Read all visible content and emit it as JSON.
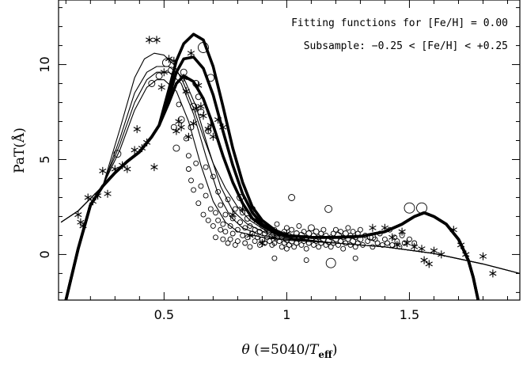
{
  "chart_data": {
    "type": "scatter",
    "xlabel": "θ (=5040/T_eff)",
    "xlabel_main": "θ",
    "xlabel_paren": " (=5040/",
    "xlabel_T": "T",
    "xlabel_sub": "eff",
    "xlabel_close": ")",
    "ylabel": "PaT(Å)",
    "xlim": [
      0.07,
      1.95
    ],
    "ylim": [
      -2.4,
      13.4
    ],
    "xticks": [
      0.5,
      1,
      1.5
    ],
    "xtick_labels": [
      "0.5",
      "1",
      "1.5"
    ],
    "yticks": [
      0,
      5,
      10
    ],
    "ytick_labels": [
      "0",
      "5",
      "10"
    ],
    "grid": false,
    "annotations": [
      "Fitting functions for [Fe/H] = 0.00",
      "Subsample: −0.25 < [Fe/H] < +0.25"
    ],
    "series": [
      {
        "line": "thin",
        "x": [
          0.08,
          0.15,
          0.25,
          0.32,
          0.38,
          0.43,
          0.47,
          0.5,
          0.55,
          0.6,
          0.65,
          0.7,
          0.75,
          0.8,
          0.9,
          1.0,
          1.2,
          1.4,
          1.6,
          1.8,
          1.95
        ],
        "y": [
          1.7,
          2.3,
          3.6,
          5.5,
          7.6,
          8.8,
          9.2,
          9.2,
          8.6,
          7.0,
          4.7,
          2.8,
          1.7,
          1.2,
          0.9,
          0.75,
          0.6,
          0.4,
          0.05,
          -0.5,
          -1.0
        ]
      },
      {
        "line": "thin",
        "x": [
          0.08,
          0.15,
          0.25,
          0.32,
          0.38,
          0.43,
          0.47,
          0.52,
          0.57,
          0.62,
          0.67,
          0.72,
          0.77,
          0.82,
          0.9,
          1.0,
          1.2,
          1.4,
          1.6,
          1.8,
          1.95
        ],
        "y": [
          1.7,
          2.3,
          3.6,
          5.8,
          8.0,
          9.2,
          9.6,
          9.6,
          9.0,
          7.4,
          5.2,
          3.2,
          2.0,
          1.4,
          1.0,
          0.8,
          0.6,
          0.4,
          0.05,
          -0.5,
          -1.0
        ]
      },
      {
        "line": "thin",
        "x": [
          0.08,
          0.15,
          0.25,
          0.32,
          0.38,
          0.43,
          0.47,
          0.52,
          0.58,
          0.63,
          0.68,
          0.73,
          0.78,
          0.84,
          0.92,
          1.0,
          1.2,
          1.4,
          1.6,
          1.8,
          1.95
        ],
        "y": [
          1.7,
          2.3,
          3.6,
          6.1,
          8.5,
          9.6,
          9.9,
          9.9,
          9.3,
          7.8,
          5.6,
          3.6,
          2.3,
          1.6,
          1.1,
          0.85,
          0.6,
          0.4,
          0.05,
          -0.5,
          -1.0
        ]
      },
      {
        "line": "thin",
        "x": [
          0.08,
          0.15,
          0.25,
          0.32,
          0.38,
          0.42,
          0.46,
          0.5,
          0.54,
          0.58,
          0.62,
          0.66,
          0.7,
          0.75,
          0.8,
          0.85,
          0.92,
          1.0,
          1.2,
          1.4,
          1.6,
          1.8,
          1.95
        ],
        "y": [
          1.7,
          2.3,
          3.6,
          6.6,
          9.3,
          10.3,
          10.6,
          10.5,
          10.0,
          9.0,
          7.7,
          6.2,
          4.8,
          3.5,
          2.5,
          1.8,
          1.2,
          0.9,
          0.6,
          0.4,
          0.05,
          -0.5,
          -1.0
        ]
      },
      {
        "line": "thick",
        "x": [
          0.1,
          0.15,
          0.2,
          0.25,
          0.3,
          0.35,
          0.4,
          0.45,
          0.48,
          0.52,
          0.55,
          0.58,
          0.62,
          0.66,
          0.7,
          0.74,
          0.78,
          0.82,
          0.86,
          0.9,
          0.95,
          1.0,
          1.1,
          1.2,
          1.3,
          1.4,
          1.47,
          1.52,
          1.56,
          1.6,
          1.65,
          1.7,
          1.74,
          1.76,
          1.78
        ],
        "y": [
          -2.4,
          0.3,
          2.6,
          3.6,
          4.3,
          4.9,
          5.4,
          6.2,
          6.8,
          8.0,
          9.0,
          9.4,
          9.1,
          8.2,
          6.8,
          5.2,
          3.8,
          2.7,
          1.9,
          1.5,
          1.15,
          1.0,
          0.9,
          0.9,
          0.95,
          1.2,
          1.6,
          2.0,
          2.2,
          2.0,
          1.6,
          0.8,
          -0.3,
          -1.2,
          -2.4
        ]
      },
      {
        "line": "thick",
        "x": [
          0.1,
          0.15,
          0.2,
          0.25,
          0.3,
          0.35,
          0.4,
          0.45,
          0.48,
          0.52,
          0.55,
          0.58,
          0.62,
          0.66,
          0.7,
          0.74,
          0.78,
          0.82,
          0.86,
          0.9,
          0.95,
          1.0,
          1.1,
          1.2,
          1.3,
          1.4,
          1.47,
          1.52,
          1.56,
          1.6,
          1.65,
          1.7,
          1.74,
          1.76,
          1.78
        ],
        "y": [
          -2.4,
          0.3,
          2.6,
          3.6,
          4.3,
          4.9,
          5.4,
          6.2,
          6.8,
          8.3,
          9.6,
          10.3,
          10.4,
          9.8,
          8.4,
          6.5,
          4.7,
          3.2,
          2.2,
          1.6,
          1.2,
          1.0,
          0.9,
          0.9,
          0.95,
          1.2,
          1.6,
          2.0,
          2.2,
          2.0,
          1.6,
          0.8,
          -0.3,
          -1.2,
          -2.4
        ]
      },
      {
        "line": "thick",
        "x": [
          0.1,
          0.15,
          0.2,
          0.25,
          0.3,
          0.35,
          0.4,
          0.45,
          0.48,
          0.52,
          0.55,
          0.58,
          0.62,
          0.66,
          0.7,
          0.74,
          0.78,
          0.82,
          0.86,
          0.9,
          0.95,
          1.0,
          1.1,
          1.2,
          1.3,
          1.4,
          1.47,
          1.52,
          1.56,
          1.6,
          1.65,
          1.7,
          1.74,
          1.76,
          1.78
        ],
        "y": [
          -2.4,
          0.3,
          2.6,
          3.6,
          4.3,
          4.9,
          5.4,
          6.2,
          6.8,
          8.7,
          10.2,
          11.1,
          11.6,
          11.3,
          9.9,
          7.8,
          5.6,
          3.8,
          2.5,
          1.8,
          1.3,
          1.0,
          0.9,
          0.9,
          0.95,
          1.2,
          1.6,
          2.0,
          2.2,
          2.0,
          1.6,
          0.8,
          -0.3,
          -1.2,
          -2.4
        ]
      }
    ],
    "stars": [
      [
        0.15,
        2.1
      ],
      [
        0.16,
        1.7
      ],
      [
        0.17,
        1.5
      ],
      [
        0.19,
        3.0
      ],
      [
        0.21,
        2.8
      ],
      [
        0.23,
        3.1
      ],
      [
        0.25,
        4.4
      ],
      [
        0.27,
        3.2
      ],
      [
        0.3,
        4.5
      ],
      [
        0.33,
        4.7
      ],
      [
        0.35,
        4.5
      ],
      [
        0.38,
        5.5
      ],
      [
        0.39,
        6.6
      ],
      [
        0.41,
        5.6
      ],
      [
        0.43,
        5.9
      ],
      [
        0.44,
        11.3
      ],
      [
        0.46,
        4.6
      ],
      [
        0.47,
        11.3
      ],
      [
        0.49,
        8.8
      ],
      [
        0.5,
        9.6
      ],
      [
        0.52,
        10.3
      ],
      [
        0.54,
        10.2
      ],
      [
        0.55,
        6.5
      ],
      [
        0.56,
        7.0
      ],
      [
        0.57,
        6.7
      ],
      [
        0.58,
        9.3
      ],
      [
        0.59,
        8.6
      ],
      [
        0.6,
        6.2
      ],
      [
        0.61,
        10.6
      ],
      [
        0.62,
        6.9
      ],
      [
        0.63,
        7.7
      ],
      [
        0.64,
        8.9
      ],
      [
        0.65,
        7.8
      ],
      [
        0.66,
        7.3
      ],
      [
        0.68,
        6.6
      ],
      [
        0.69,
        6.8
      ],
      [
        0.7,
        6.2
      ],
      [
        0.72,
        7.1
      ],
      [
        0.74,
        6.7
      ],
      [
        0.78,
        2.1
      ],
      [
        0.82,
        2.4
      ],
      [
        0.85,
        1.0
      ],
      [
        0.88,
        1.8
      ],
      [
        0.9,
        0.6
      ],
      [
        0.95,
        0.9
      ],
      [
        1.0,
        1.1
      ],
      [
        1.35,
        1.4
      ],
      [
        1.4,
        1.4
      ],
      [
        1.43,
        0.9
      ],
      [
        1.45,
        0.5
      ],
      [
        1.47,
        1.2
      ],
      [
        1.49,
        0.6
      ],
      [
        1.52,
        0.4
      ],
      [
        1.55,
        0.3
      ],
      [
        1.6,
        0.2
      ],
      [
        1.63,
        0.0
      ],
      [
        1.68,
        1.3
      ],
      [
        1.71,
        0.5
      ],
      [
        1.73,
        0.0
      ],
      [
        1.8,
        -0.1
      ],
      [
        1.84,
        -1.0
      ],
      [
        1.56,
        -0.3
      ],
      [
        1.58,
        -0.5
      ]
    ],
    "circles": [
      [
        0.31,
        5.3,
        4.5
      ],
      [
        0.51,
        10.1,
        5
      ],
      [
        0.53,
        9.7,
        4
      ],
      [
        0.54,
        6.7,
        3.5
      ],
      [
        0.55,
        5.6,
        4
      ],
      [
        0.56,
        7.9,
        3
      ],
      [
        0.57,
        7.1,
        4
      ],
      [
        0.58,
        9.6,
        4
      ],
      [
        0.59,
        6.1,
        3
      ],
      [
        0.6,
        4.5,
        3
      ],
      [
        0.6,
        5.2,
        3
      ],
      [
        0.61,
        3.9,
        3
      ],
      [
        0.61,
        6.7,
        3.5
      ],
      [
        0.62,
        7.8,
        4
      ],
      [
        0.62,
        3.4,
        3
      ],
      [
        0.63,
        4.8,
        3
      ],
      [
        0.63,
        9.0,
        4
      ],
      [
        0.64,
        2.7,
        3
      ],
      [
        0.64,
        8.3,
        3.5
      ],
      [
        0.65,
        3.6,
        3
      ],
      [
        0.65,
        7.5,
        4
      ],
      [
        0.66,
        10.9,
        6.5
      ],
      [
        0.66,
        2.1,
        3
      ],
      [
        0.67,
        4.6,
        3
      ],
      [
        0.67,
        3.1,
        3
      ],
      [
        0.68,
        1.8,
        3
      ],
      [
        0.68,
        6.5,
        3.5
      ],
      [
        0.69,
        2.4,
        3
      ],
      [
        0.69,
        9.3,
        4.5
      ],
      [
        0.7,
        1.5,
        3
      ],
      [
        0.7,
        4.1,
        3
      ],
      [
        0.71,
        2.2,
        3
      ],
      [
        0.71,
        0.9,
        3
      ],
      [
        0.72,
        1.8,
        3
      ],
      [
        0.72,
        3.3,
        3
      ],
      [
        0.73,
        1.3,
        3
      ],
      [
        0.73,
        2.6,
        3
      ],
      [
        0.74,
        0.8,
        3
      ],
      [
        0.74,
        1.6,
        3
      ],
      [
        0.75,
        2.1,
        3
      ],
      [
        0.75,
        1.2,
        3
      ],
      [
        0.76,
        0.6,
        3
      ],
      [
        0.76,
        2.9,
        3
      ],
      [
        0.77,
        1.5,
        3
      ],
      [
        0.77,
        0.8,
        3
      ],
      [
        0.78,
        1.9,
        3
      ],
      [
        0.78,
        1.1,
        3
      ],
      [
        0.79,
        0.5,
        3
      ],
      [
        0.79,
        2.4,
        3
      ],
      [
        0.8,
        1.3,
        3
      ],
      [
        0.8,
        0.7,
        3
      ],
      [
        0.81,
        1.7,
        3
      ],
      [
        0.81,
        3.0,
        4
      ],
      [
        0.82,
        1.0,
        3
      ],
      [
        0.82,
        2.2,
        3
      ],
      [
        0.83,
        0.6,
        3
      ],
      [
        0.83,
        1.4,
        3
      ],
      [
        0.84,
        1.9,
        3.5
      ],
      [
        0.84,
        0.9,
        3
      ],
      [
        0.85,
        1.5,
        3
      ],
      [
        0.85,
        0.4,
        3
      ],
      [
        0.86,
        1.1,
        3
      ],
      [
        0.86,
        2.4,
        3.5
      ],
      [
        0.87,
        0.7,
        3
      ],
      [
        0.87,
        1.3,
        3
      ],
      [
        0.88,
        0.9,
        3
      ],
      [
        0.88,
        1.8,
        3
      ],
      [
        0.89,
        0.5,
        3
      ],
      [
        0.89,
        1.2,
        3
      ],
      [
        0.9,
        1.5,
        3
      ],
      [
        0.9,
        0.8,
        3
      ],
      [
        0.91,
        0.6,
        3
      ],
      [
        0.91,
        1.1,
        3
      ],
      [
        0.92,
        1.4,
        3.5
      ],
      [
        0.92,
        0.9,
        3
      ],
      [
        0.93,
        0.7,
        3
      ],
      [
        0.93,
        1.2,
        3
      ],
      [
        0.94,
        0.5,
        3
      ],
      [
        0.94,
        1.0,
        3
      ],
      [
        0.95,
        1.3,
        3
      ],
      [
        0.95,
        0.6,
        3
      ],
      [
        0.96,
        0.9,
        3.5
      ],
      [
        0.96,
        1.6,
        3
      ],
      [
        0.97,
        0.7,
        3
      ],
      [
        0.97,
        1.1,
        3
      ],
      [
        0.98,
        0.4,
        3
      ],
      [
        0.98,
        0.9,
        3
      ],
      [
        0.99,
        1.2,
        3
      ],
      [
        0.99,
        0.6,
        3
      ],
      [
        1.0,
        0.8,
        4
      ],
      [
        1.0,
        1.4,
        3
      ],
      [
        1.0,
        0.3,
        3
      ],
      [
        1.01,
        1.0,
        3
      ],
      [
        1.01,
        0.5,
        3
      ],
      [
        1.02,
        0.7,
        3.5
      ],
      [
        1.02,
        1.3,
        3
      ],
      [
        1.02,
        3.0,
        4
      ],
      [
        1.03,
        0.9,
        3
      ],
      [
        1.03,
        0.4,
        3
      ],
      [
        1.04,
        1.1,
        3.5
      ],
      [
        1.04,
        0.6,
        3
      ],
      [
        1.05,
        0.8,
        3
      ],
      [
        1.05,
        1.5,
        3
      ],
      [
        1.06,
        0.5,
        3
      ],
      [
        1.06,
        1.0,
        4
      ],
      [
        1.07,
        0.7,
        3
      ],
      [
        1.07,
        1.2,
        3
      ],
      [
        1.08,
        0.9,
        3
      ],
      [
        1.08,
        0.3,
        3
      ],
      [
        1.09,
        1.1,
        3.5
      ],
      [
        1.09,
        0.6,
        3
      ],
      [
        1.1,
        0.8,
        3
      ],
      [
        1.1,
        1.4,
        4
      ],
      [
        1.11,
        0.5,
        3
      ],
      [
        1.11,
        1.0,
        3
      ],
      [
        1.12,
        0.7,
        3
      ],
      [
        1.12,
        1.2,
        3.5
      ],
      [
        1.13,
        0.9,
        3
      ],
      [
        1.13,
        0.4,
        3
      ],
      [
        1.14,
        1.1,
        3
      ],
      [
        1.14,
        0.6,
        3
      ],
      [
        1.15,
        0.8,
        3.5
      ],
      [
        1.15,
        1.3,
        3
      ],
      [
        1.16,
        0.5,
        3
      ],
      [
        1.16,
        1.0,
        3
      ],
      [
        1.17,
        0.7,
        4
      ],
      [
        1.17,
        2.4,
        4.5
      ],
      [
        1.18,
        0.9,
        3
      ],
      [
        1.18,
        0.4,
        3
      ],
      [
        1.19,
        1.1,
        3
      ],
      [
        1.19,
        0.6,
        3
      ],
      [
        1.2,
        0.8,
        3.5
      ],
      [
        1.2,
        1.3,
        3
      ],
      [
        1.21,
        0.5,
        3
      ],
      [
        1.21,
        1.0,
        4
      ],
      [
        1.22,
        0.7,
        3
      ],
      [
        1.22,
        1.2,
        3
      ],
      [
        1.23,
        0.9,
        3
      ],
      [
        1.23,
        0.3,
        3
      ],
      [
        1.24,
        1.1,
        3.5
      ],
      [
        1.24,
        0.6,
        3
      ],
      [
        1.25,
        0.8,
        3
      ],
      [
        1.25,
        1.4,
        3
      ],
      [
        1.26,
        0.5,
        3
      ],
      [
        1.26,
        1.0,
        3
      ],
      [
        1.27,
        0.7,
        3.5
      ],
      [
        1.27,
        1.2,
        3
      ],
      [
        1.28,
        0.9,
        3
      ],
      [
        1.28,
        0.4,
        3
      ],
      [
        1.29,
        1.1,
        3
      ],
      [
        1.29,
        0.6,
        3
      ],
      [
        1.3,
        0.8,
        3.5
      ],
      [
        1.3,
        1.3,
        3
      ],
      [
        1.31,
        0.5,
        3
      ],
      [
        1.32,
        1.0,
        3
      ],
      [
        1.33,
        0.7,
        3
      ],
      [
        1.34,
        0.9,
        3.5
      ],
      [
        1.35,
        0.4,
        3
      ],
      [
        1.36,
        0.8,
        3
      ],
      [
        1.37,
        0.6,
        3
      ],
      [
        1.38,
        1.1,
        3
      ],
      [
        1.39,
        0.5,
        3
      ],
      [
        1.4,
        0.8,
        3
      ],
      [
        1.41,
        0.6,
        3
      ],
      [
        1.42,
        1.3,
        3
      ],
      [
        1.43,
        0.5,
        3
      ],
      [
        1.44,
        0.9,
        3
      ],
      [
        1.45,
        0.7,
        3
      ],
      [
        1.46,
        0.4,
        3
      ],
      [
        1.47,
        1.0,
        3
      ],
      [
        1.48,
        0.6,
        3
      ],
      [
        1.5,
        0.8,
        3
      ],
      [
        1.52,
        0.6,
        3
      ],
      [
        1.18,
        -0.45,
        6
      ],
      [
        1.5,
        2.45,
        6.5
      ],
      [
        1.55,
        2.45,
        6.5
      ],
      [
        1.35,
        0.9,
        4
      ],
      [
        0.45,
        9.0,
        4
      ],
      [
        0.48,
        9.4,
        4
      ],
      [
        0.95,
        -0.2,
        3
      ],
      [
        1.08,
        -0.3,
        3
      ],
      [
        1.28,
        -0.2,
        3
      ]
    ]
  }
}
